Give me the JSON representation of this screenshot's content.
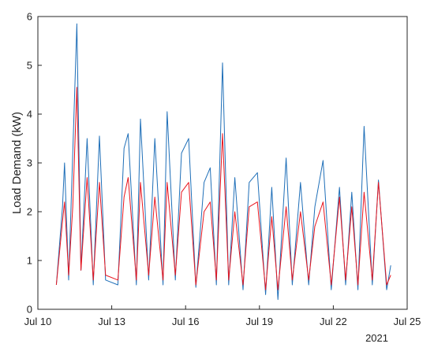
{
  "chart_data": {
    "type": "line",
    "title": "",
    "xlabel": "",
    "ylabel": "Load Demand (kW)",
    "x_year_label": "2021",
    "xlim": [
      "2021-07-10",
      "2021-07-25"
    ],
    "ylim": [
      0,
      6
    ],
    "grid": false,
    "legend": "none",
    "x_ticks": [
      "Jul 10",
      "Jul 13",
      "Jul 16",
      "Jul 19",
      "Jul 22",
      "Jul 25"
    ],
    "y_ticks": [
      "0",
      "1",
      "2",
      "3",
      "4",
      "5",
      "6"
    ],
    "series": [
      {
        "color": "#1f6fb8",
        "points": [
          [
            "2021-07-10 18:00",
            0.5
          ],
          [
            "2021-07-11 00:00",
            2.1
          ],
          [
            "2021-07-11 02:00",
            3.0
          ],
          [
            "2021-07-11 06:00",
            0.6
          ],
          [
            "2021-07-11 10:00",
            3.2
          ],
          [
            "2021-07-11 14:00",
            5.85
          ],
          [
            "2021-07-11 18:00",
            0.8
          ],
          [
            "2021-07-12 00:00",
            3.5
          ],
          [
            "2021-07-12 06:00",
            0.5
          ],
          [
            "2021-07-12 12:00",
            3.55
          ],
          [
            "2021-07-12 18:00",
            0.6
          ],
          [
            "2021-07-13 06:00",
            0.5
          ],
          [
            "2021-07-13 12:00",
            3.3
          ],
          [
            "2021-07-13 16:00",
            3.6
          ],
          [
            "2021-07-14 00:00",
            0.5
          ],
          [
            "2021-07-14 04:00",
            3.9
          ],
          [
            "2021-07-14 12:00",
            0.6
          ],
          [
            "2021-07-14 18:00",
            3.5
          ],
          [
            "2021-07-15 02:00",
            0.5
          ],
          [
            "2021-07-15 06:00",
            4.05
          ],
          [
            "2021-07-15 14:00",
            0.6
          ],
          [
            "2021-07-15 20:00",
            3.2
          ],
          [
            "2021-07-16 03:00",
            3.5
          ],
          [
            "2021-07-16 10:00",
            0.45
          ],
          [
            "2021-07-16 18:00",
            2.6
          ],
          [
            "2021-07-17 00:00",
            2.9
          ],
          [
            "2021-07-17 06:00",
            0.5
          ],
          [
            "2021-07-17 12:00",
            5.05
          ],
          [
            "2021-07-17 18:00",
            0.5
          ],
          [
            "2021-07-18 00:00",
            2.7
          ],
          [
            "2021-07-18 08:00",
            0.4
          ],
          [
            "2021-07-18 14:00",
            2.6
          ],
          [
            "2021-07-18 22:00",
            2.8
          ],
          [
            "2021-07-19 06:00",
            0.3
          ],
          [
            "2021-07-19 12:00",
            2.5
          ],
          [
            "2021-07-19 18:00",
            0.2
          ],
          [
            "2021-07-20 02:00",
            3.1
          ],
          [
            "2021-07-20 08:00",
            0.5
          ],
          [
            "2021-07-20 16:00",
            2.6
          ],
          [
            "2021-07-21 00:00",
            0.5
          ],
          [
            "2021-07-21 06:00",
            2.1
          ],
          [
            "2021-07-21 14:00",
            3.05
          ],
          [
            "2021-07-21 22:00",
            0.4
          ],
          [
            "2021-07-22 06:00",
            2.5
          ],
          [
            "2021-07-22 12:00",
            0.5
          ],
          [
            "2021-07-22 18:00",
            2.4
          ],
          [
            "2021-07-23 00:00",
            0.4
          ],
          [
            "2021-07-23 06:00",
            3.75
          ],
          [
            "2021-07-23 14:00",
            0.5
          ],
          [
            "2021-07-23 20:00",
            2.65
          ],
          [
            "2021-07-24 04:00",
            0.4
          ],
          [
            "2021-07-24 08:00",
            0.9
          ]
        ]
      },
      {
        "color": "#e8151e",
        "points": [
          [
            "2021-07-10 18:00",
            0.5
          ],
          [
            "2021-07-11 00:00",
            1.8
          ],
          [
            "2021-07-11 02:00",
            2.2
          ],
          [
            "2021-07-11 06:00",
            0.7
          ],
          [
            "2021-07-11 10:00",
            2.1
          ],
          [
            "2021-07-11 14:00",
            4.55
          ],
          [
            "2021-07-11 18:00",
            0.8
          ],
          [
            "2021-07-12 00:00",
            2.7
          ],
          [
            "2021-07-12 06:00",
            0.6
          ],
          [
            "2021-07-12 12:00",
            2.6
          ],
          [
            "2021-07-12 18:00",
            0.7
          ],
          [
            "2021-07-13 06:00",
            0.6
          ],
          [
            "2021-07-13 12:00",
            2.3
          ],
          [
            "2021-07-13 16:00",
            2.7
          ],
          [
            "2021-07-14 00:00",
            0.6
          ],
          [
            "2021-07-14 04:00",
            2.6
          ],
          [
            "2021-07-14 12:00",
            0.7
          ],
          [
            "2021-07-14 18:00",
            2.3
          ],
          [
            "2021-07-15 02:00",
            0.6
          ],
          [
            "2021-07-15 06:00",
            2.6
          ],
          [
            "2021-07-15 14:00",
            0.7
          ],
          [
            "2021-07-15 20:00",
            2.4
          ],
          [
            "2021-07-16 03:00",
            2.6
          ],
          [
            "2021-07-16 10:00",
            0.5
          ],
          [
            "2021-07-16 18:00",
            2.0
          ],
          [
            "2021-07-17 00:00",
            2.2
          ],
          [
            "2021-07-17 06:00",
            0.6
          ],
          [
            "2021-07-17 12:00",
            3.6
          ],
          [
            "2021-07-17 18:00",
            0.6
          ],
          [
            "2021-07-18 00:00",
            2.0
          ],
          [
            "2021-07-18 08:00",
            0.5
          ],
          [
            "2021-07-18 14:00",
            2.1
          ],
          [
            "2021-07-18 22:00",
            2.2
          ],
          [
            "2021-07-19 06:00",
            0.4
          ],
          [
            "2021-07-19 12:00",
            1.9
          ],
          [
            "2021-07-19 18:00",
            0.4
          ],
          [
            "2021-07-20 02:00",
            2.1
          ],
          [
            "2021-07-20 08:00",
            0.6
          ],
          [
            "2021-07-20 16:00",
            2.0
          ],
          [
            "2021-07-21 00:00",
            0.6
          ],
          [
            "2021-07-21 06:00",
            1.7
          ],
          [
            "2021-07-21 14:00",
            2.2
          ],
          [
            "2021-07-21 22:00",
            0.5
          ],
          [
            "2021-07-22 06:00",
            2.3
          ],
          [
            "2021-07-22 12:00",
            0.6
          ],
          [
            "2021-07-22 18:00",
            2.1
          ],
          [
            "2021-07-23 00:00",
            0.5
          ],
          [
            "2021-07-23 06:00",
            2.4
          ],
          [
            "2021-07-23 14:00",
            0.6
          ],
          [
            "2021-07-23 20:00",
            2.6
          ],
          [
            "2021-07-24 04:00",
            0.5
          ],
          [
            "2021-07-24 08:00",
            0.7
          ]
        ]
      }
    ]
  }
}
